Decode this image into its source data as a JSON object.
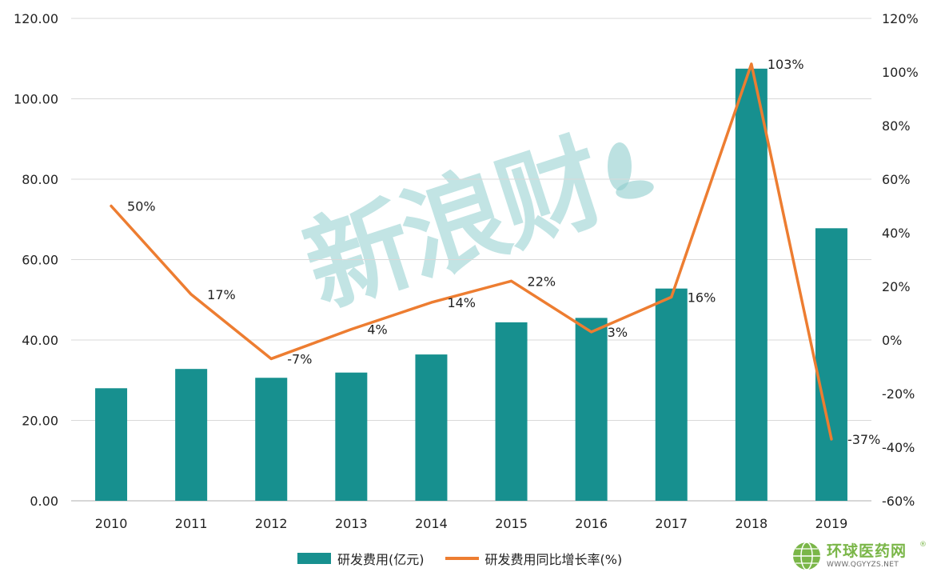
{
  "chart_data": {
    "type": "bar+line",
    "categories": [
      "2010",
      "2011",
      "2012",
      "2013",
      "2014",
      "2015",
      "2016",
      "2017",
      "2018",
      "2019"
    ],
    "series": [
      {
        "name": "研发费用(亿元)",
        "type": "bar",
        "axis": "left",
        "values": [
          28.0,
          32.8,
          30.6,
          31.9,
          36.4,
          44.4,
          45.5,
          52.8,
          107.5,
          67.8
        ]
      },
      {
        "name": "研发费用同比增长率(%)",
        "type": "line",
        "axis": "right",
        "values": [
          50,
          17,
          -7,
          4,
          14,
          22,
          3,
          16,
          103,
          -37
        ],
        "labels": [
          "50%",
          "17%",
          "-7%",
          "4%",
          "14%",
          "22%",
          "3%",
          "16%",
          "103%",
          "-37%"
        ]
      }
    ],
    "left_axis": {
      "ylim": [
        0,
        120
      ],
      "ticks": [
        "0.00",
        "20.00",
        "40.00",
        "60.00",
        "80.00",
        "100.00",
        "120.00"
      ]
    },
    "right_axis": {
      "ylim": [
        -60,
        120
      ],
      "ticks": [
        "-60%",
        "-40%",
        "-20%",
        "0%",
        "20%",
        "40%",
        "60%",
        "80%",
        "100%",
        "120%"
      ]
    },
    "grid": true,
    "legend_position": "bottom",
    "colors": {
      "bar": "#17908f",
      "line": "#ed7d31",
      "grid": "#d9d9d9",
      "axis": "#bfbfbf"
    }
  },
  "watermark": {
    "text": "新浪财"
  },
  "logo": {
    "name": "环球医药网",
    "url": "WWW.QGYYZS.NET",
    "reg": "®"
  }
}
